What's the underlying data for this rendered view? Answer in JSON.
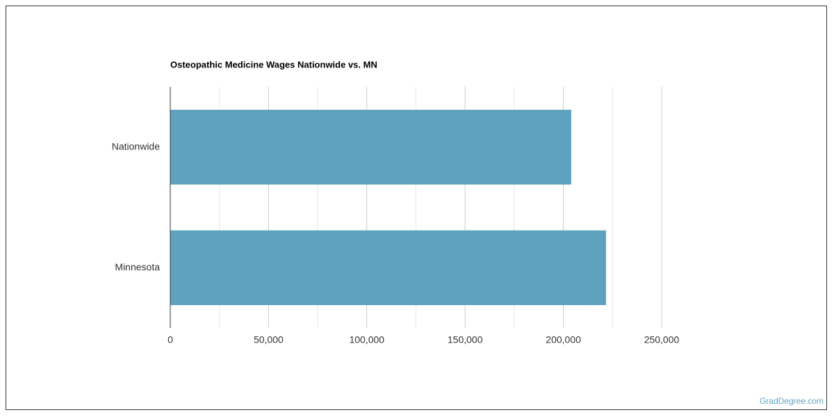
{
  "chart_data": {
    "type": "hbar",
    "title": "Osteopathic Medicine Wages Nationwide vs. MN",
    "categories": [
      "Nationwide",
      "Minnesota"
    ],
    "values": [
      204000,
      221700
    ],
    "color": "#5ea2bf",
    "xlim": [
      0,
      250000
    ],
    "xticks": [
      0,
      {
        "value": 50000,
        "label": "50,000"
      },
      {
        "value": 100000,
        "label": "100,000"
      },
      {
        "value": 150000,
        "label": "150,000"
      },
      {
        "value": 200000,
        "label": "200,000"
      },
      {
        "value": 250000,
        "label": "250,000"
      }
    ],
    "minor_xticks": [
      25000,
      75000,
      125000,
      175000,
      225000
    ],
    "grid": true
  },
  "footer": {
    "source": "GradDegree.com"
  }
}
